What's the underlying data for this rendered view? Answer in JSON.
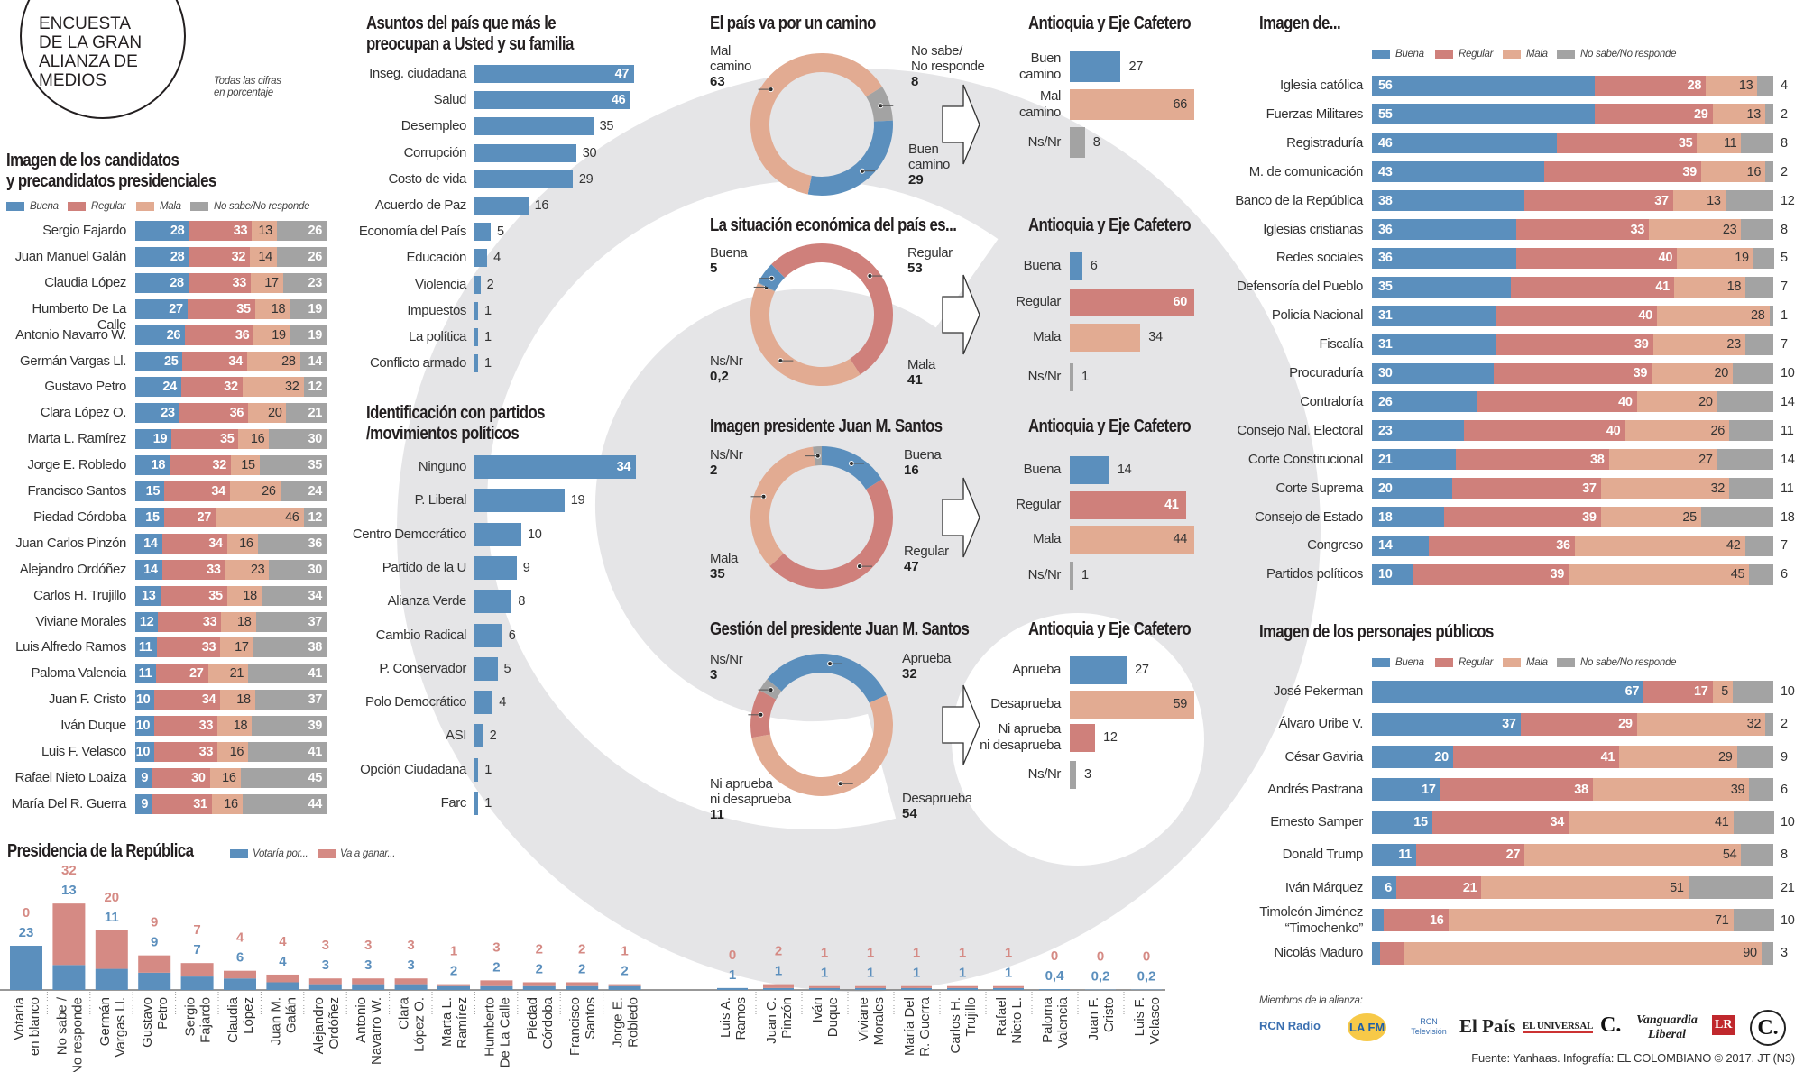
{
  "header": {
    "circle_title_lines": [
      "ENCUESTA",
      "DE LA GRAN",
      "ALIANZA DE",
      "MEDIOS"
    ],
    "note_lines": [
      "Todas las cifras",
      "en porcentaje"
    ]
  },
  "colors": {
    "buena": "#5b8fbd",
    "regular": "#cf807b",
    "mala": "#e2ab92",
    "nsnr": "#a3a3a3",
    "votaria": "#5b8fbd",
    "ganar": "#d58a84",
    "watermark": "#e5e5e7"
  },
  "legend4": [
    "Buena",
    "Regular",
    "Mala",
    "No sabe/No responde"
  ],
  "chart_data": [
    {
      "id": "candidatos",
      "type": "bar",
      "stacked": true,
      "orientation": "horizontal",
      "title_lines": [
        "Imagen de los candidatos",
        "y precandidatos presidenciales"
      ],
      "categories": [
        "Sergio Fajardo",
        "Juan Manuel Galán",
        "Claudia López",
        "Humberto De La Calle",
        "Antonio Navarro W.",
        "Germán Vargas Ll.",
        "Gustavo Petro",
        "Clara López O.",
        "Marta L. Ramírez",
        "Jorge E. Robledo",
        "Francisco Santos",
        "Piedad Córdoba",
        "Juan Carlos Pinzón",
        "Alejandro Ordóñez",
        "Carlos H. Trujillo",
        "Viviane Morales",
        "Luis Alfredo Ramos",
        "Paloma Valencia",
        "Juan F. Cristo",
        "Iván Duque",
        "Luis F. Velasco",
        "Rafael Nieto Loaiza",
        "María Del R. Guerra"
      ],
      "series": [
        {
          "name": "Buena",
          "values": [
            28,
            28,
            28,
            27,
            26,
            25,
            24,
            23,
            19,
            18,
            15,
            15,
            14,
            14,
            13,
            12,
            11,
            11,
            10,
            10,
            10,
            9,
            9
          ]
        },
        {
          "name": "Regular",
          "values": [
            33,
            32,
            33,
            35,
            36,
            34,
            32,
            36,
            35,
            32,
            34,
            27,
            34,
            33,
            35,
            33,
            33,
            27,
            34,
            33,
            33,
            30,
            31
          ]
        },
        {
          "name": "Mala",
          "values": [
            13,
            14,
            17,
            18,
            19,
            28,
            32,
            20,
            16,
            15,
            26,
            46,
            16,
            23,
            18,
            18,
            17,
            21,
            18,
            18,
            16,
            16,
            16
          ]
        },
        {
          "name": "No sabe/No responde",
          "values": [
            26,
            26,
            23,
            19,
            19,
            14,
            12,
            21,
            30,
            35,
            24,
            12,
            36,
            30,
            34,
            37,
            38,
            41,
            37,
            39,
            41,
            45,
            44
          ]
        }
      ],
      "legend": "top-left"
    },
    {
      "id": "presidencia",
      "type": "bar",
      "title": "Presidencia de la República",
      "legend_labels": [
        "Votaría por...",
        "Va a ganar..."
      ],
      "categories": [
        [
          "Votaría",
          "en blanco"
        ],
        [
          "No sabe /",
          "No responde"
        ],
        [
          "Germán",
          "Vargas Ll."
        ],
        [
          "Gustavo",
          "Petro"
        ],
        [
          "Sergio",
          "Fajardo"
        ],
        [
          "Claudia",
          "López"
        ],
        [
          "Juan M.",
          "Galán"
        ],
        [
          "Alejandro",
          "Ordóñez"
        ],
        [
          "Antonio",
          "Navarro W."
        ],
        [
          "Clara",
          "López O."
        ],
        [
          "Marta L.",
          "Ramírez"
        ],
        [
          "Humberto",
          "De La Calle"
        ],
        [
          "Piedad",
          "Córdoba"
        ],
        [
          "Francisco",
          "Santos"
        ],
        [
          "Jorge E.",
          "Robledo"
        ],
        [
          "Luis A.",
          "Ramos"
        ],
        [
          "Juan C.",
          "Pinzón"
        ],
        [
          "Iván",
          "Duque"
        ],
        [
          "Viviane",
          "Morales"
        ],
        [
          "María Del",
          "R. Guerra"
        ],
        [
          "Carlos H.",
          "Trujillo"
        ],
        [
          "Rafael",
          "Nieto L."
        ],
        [
          "Paloma",
          "Valencia"
        ],
        [
          "Juan F.",
          "Cristo"
        ],
        [
          "Luis F.",
          "Velasco"
        ]
      ],
      "series": [
        {
          "name": "Votaría por...",
          "values": [
            23,
            13,
            11,
            9,
            7,
            6,
            4,
            3,
            3,
            3,
            2,
            2,
            2,
            2,
            2,
            1,
            1,
            1,
            1,
            1,
            1,
            1,
            0.4,
            0.2,
            0.2
          ]
        },
        {
          "name": "Va a ganar...",
          "values": [
            0,
            32,
            20,
            9,
            7,
            4,
            4,
            3,
            3,
            3,
            1,
            3,
            2,
            2,
            1,
            0,
            2,
            1,
            1,
            1,
            1,
            1,
            0,
            0,
            0
          ]
        }
      ],
      "legend": "top"
    },
    {
      "id": "asuntos",
      "type": "bar",
      "orientation": "horizontal",
      "title_lines": [
        "Asuntos del país que más le",
        "preocupan a Usted y su familia"
      ],
      "categories": [
        "Inseg. ciudadana",
        "Salud",
        "Desempleo",
        "Corrupción",
        "Costo de vida",
        "Acuerdo de Paz",
        "Economía del País",
        "Educación",
        "Violencia",
        "Impuestos",
        "La política",
        "Conflicto armado"
      ],
      "values": [
        47,
        46,
        35,
        30,
        29,
        16,
        5,
        4,
        2,
        1,
        1,
        1
      ]
    },
    {
      "id": "partidos",
      "type": "bar",
      "orientation": "horizontal",
      "title_lines": [
        "Identificación con partidos",
        "/movimientos políticos"
      ],
      "categories": [
        "Ninguno",
        "P. Liberal",
        "Centro Democrático",
        "Partido de la U",
        "Alianza Verde",
        "Cambio Radical",
        "P. Conservador",
        "Polo Democrático",
        "ASI",
        "Opción Ciudadana",
        "Farc"
      ],
      "values": [
        34,
        19,
        10,
        9,
        8,
        6,
        5,
        4,
        2,
        1,
        1
      ]
    },
    {
      "id": "camino",
      "type": "pie",
      "donut": true,
      "title": "El país va por un camino",
      "slices": [
        {
          "label": "No sabe/\nNo responde",
          "value": 8,
          "color": "#a3a3a3"
        },
        {
          "label": "Buen\ncamino",
          "value": 29,
          "color": "#5b8fbd"
        },
        {
          "label": "Mal\ncamino",
          "value": 63,
          "color": "#e2ab92"
        }
      ],
      "region": {
        "title": "Antioquia y Eje Cafetero",
        "categories": [
          "Buen\ncamino",
          "Mal\ncamino",
          "Ns/Nr"
        ],
        "values": [
          27,
          66,
          8
        ],
        "colors": [
          "#5b8fbd",
          "#e2ab92",
          "#a3a3a3"
        ]
      }
    },
    {
      "id": "economia",
      "type": "pie",
      "donut": true,
      "title": "La situación económica del país es...",
      "slices": [
        {
          "label": "Regular",
          "value": 53,
          "color": "#cf807b"
        },
        {
          "label": "Mala",
          "value": 41,
          "color": "#e2ab92"
        },
        {
          "label": "Ns/Nr",
          "value": 0.2,
          "color": "#a3a3a3"
        },
        {
          "label": "Buena",
          "value": 5,
          "color": "#5b8fbd"
        }
      ],
      "region": {
        "title": "Antioquia y Eje Cafetero",
        "categories": [
          "Buena",
          "Regular",
          "Mala",
          "Ns/Nr"
        ],
        "values": [
          6,
          60,
          34,
          1
        ],
        "colors": [
          "#5b8fbd",
          "#cf807b",
          "#e2ab92",
          "#a3a3a3"
        ]
      }
    },
    {
      "id": "imagen-santos",
      "type": "pie",
      "donut": true,
      "title": "Imagen presidente Juan M. Santos",
      "slices": [
        {
          "label": "Buena",
          "value": 16,
          "color": "#5b8fbd"
        },
        {
          "label": "Regular",
          "value": 47,
          "color": "#cf807b"
        },
        {
          "label": "Mala",
          "value": 35,
          "color": "#e2ab92"
        },
        {
          "label": "Ns/Nr",
          "value": 2,
          "color": "#a3a3a3"
        }
      ],
      "region": {
        "title": "Antioquia y Eje Cafetero",
        "categories": [
          "Buena",
          "Regular",
          "Mala",
          "Ns/Nr"
        ],
        "values": [
          14,
          41,
          44,
          1
        ],
        "colors": [
          "#5b8fbd",
          "#cf807b",
          "#e2ab92",
          "#a3a3a3"
        ]
      }
    },
    {
      "id": "gestion-santos",
      "type": "pie",
      "donut": true,
      "title": "Gestión del presidente Juan M. Santos",
      "slices": [
        {
          "label": "Aprueba",
          "value": 32,
          "color": "#5b8fbd"
        },
        {
          "label": "Desaprueba",
          "value": 54,
          "color": "#e2ab92"
        },
        {
          "label": "Ni aprueba\nni desaprueba",
          "value": 11,
          "color": "#cf807b"
        },
        {
          "label": "Ns/Nr",
          "value": 3,
          "color": "#a3a3a3"
        }
      ],
      "region": {
        "title": "Antioquia y Eje Cafetero",
        "categories": [
          "Aprueba",
          "Desaprueba",
          "Ni aprueba\nni desaprueba",
          "Ns/Nr"
        ],
        "values": [
          27,
          59,
          12,
          3
        ],
        "colors": [
          "#5b8fbd",
          "#e2ab92",
          "#cf807b",
          "#a3a3a3"
        ]
      }
    },
    {
      "id": "instituciones",
      "type": "bar",
      "stacked": true,
      "orientation": "horizontal",
      "title": "Imagen de...",
      "categories": [
        "Iglesia católica",
        "Fuerzas Militares",
        "Registraduría",
        "M. de comunicación",
        "Banco de la República",
        "Iglesias cristianas",
        "Redes sociales",
        "Defensoría del Pueblo",
        "Policía Nacional",
        "Fiscalía",
        "Procuraduría",
        "Contraloría",
        "Consejo Nal. Electoral",
        "Corte Constitucional",
        "Corte Suprema",
        "Consejo de Estado",
        "Congreso",
        "Partidos políticos"
      ],
      "series": [
        {
          "name": "Buena",
          "values": [
            56,
            55,
            46,
            43,
            38,
            36,
            36,
            35,
            31,
            31,
            30,
            26,
            23,
            21,
            20,
            18,
            14,
            10
          ]
        },
        {
          "name": "Regular",
          "values": [
            28,
            29,
            35,
            39,
            37,
            33,
            40,
            41,
            40,
            39,
            39,
            40,
            40,
            38,
            37,
            39,
            36,
            39
          ]
        },
        {
          "name": "Mala",
          "values": [
            13,
            13,
            11,
            16,
            13,
            23,
            19,
            18,
            28,
            23,
            20,
            20,
            26,
            27,
            32,
            25,
            42,
            45
          ]
        },
        {
          "name": "No sabe/No responde",
          "values": [
            4,
            2,
            8,
            2,
            12,
            8,
            5,
            7,
            1,
            7,
            10,
            14,
            11,
            14,
            11,
            18,
            7,
            6
          ]
        }
      ],
      "legend": "top"
    },
    {
      "id": "personajes",
      "type": "bar",
      "stacked": true,
      "orientation": "horizontal",
      "title": "Imagen de los personajes públicos",
      "categories": [
        "José Pekerman",
        "Álvaro Uribe V.",
        "César Gaviria",
        "Andrés Pastrana",
        "Ernesto Samper",
        "Donald Trump",
        "Iván Márquez",
        "Timoleón Jiménez\n“Timochenko”",
        "Nicolás Maduro"
      ],
      "series": [
        {
          "name": "Buena",
          "values": [
            67,
            37,
            20,
            17,
            15,
            11,
            6,
            3,
            2
          ]
        },
        {
          "name": "Regular",
          "values": [
            17,
            29,
            41,
            38,
            34,
            27,
            21,
            16,
            6
          ]
        },
        {
          "name": "Mala",
          "values": [
            5,
            32,
            29,
            39,
            41,
            54,
            51,
            71,
            90
          ]
        },
        {
          "name": "No sabe/No responde",
          "values": [
            10,
            2,
            9,
            6,
            10,
            8,
            21,
            10,
            3
          ]
        }
      ],
      "legend": "top"
    }
  ],
  "footer": {
    "members_label": "Miembros de la alianza:",
    "logos": [
      "RCN Radio",
      "LA FM",
      "RCN Televisión",
      "El País",
      "EL UNIVERSAL",
      "C.",
      "Vanguardia Liberal",
      "LR",
      "C."
    ],
    "source": "Fuente: Yanhaas. Infografía: EL COLOMBIANO © 2017. JT (N3)"
  }
}
